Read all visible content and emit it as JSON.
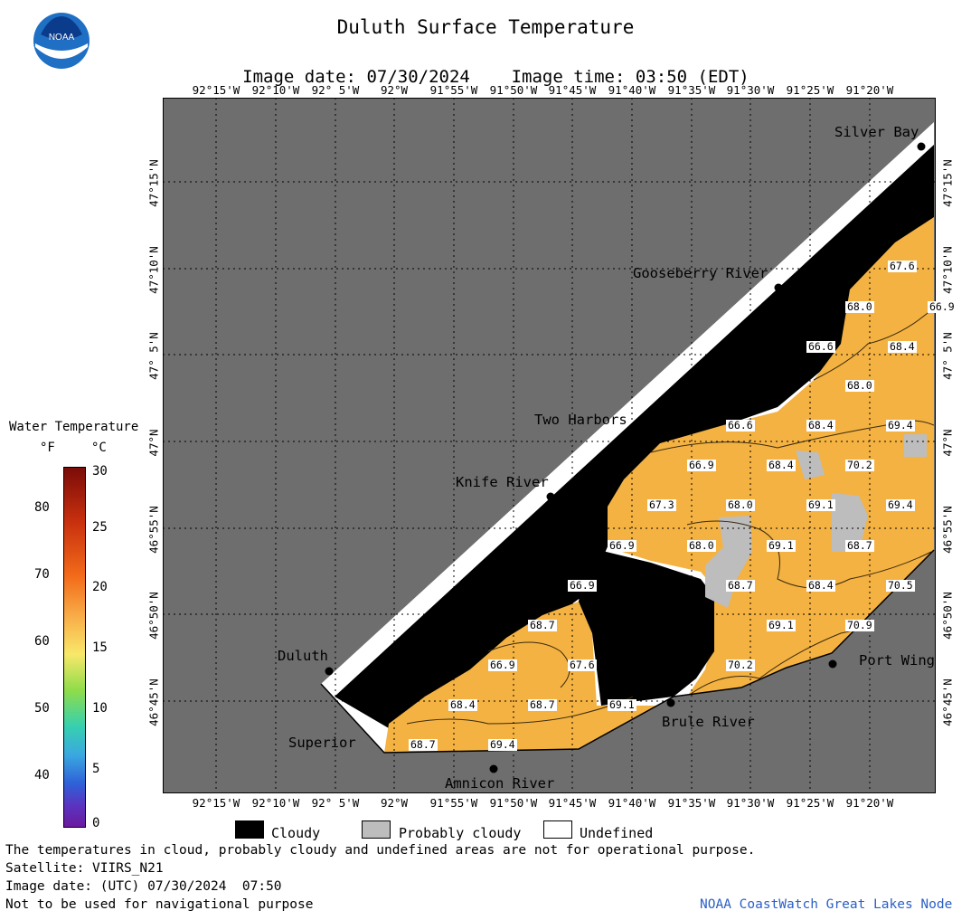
{
  "header": {
    "title": "Duluth Surface Temperature",
    "image_date": "Image date: 07/30/2024",
    "image_time": "Image time: 03:50 (EDT)"
  },
  "map": {
    "longitude_labels": [
      "92°15'W",
      "92°10'W",
      "92° 5'W",
      "92°W",
      "91°55'W",
      "91°50'W",
      "91°45'W",
      "91°40'W",
      "91°35'W",
      "91°30'W",
      "91°25'W",
      "91°20'W"
    ],
    "latitude_labels": [
      "47°15'N",
      "47°10'N",
      "47° 5'N",
      "47°N",
      "46°55'N",
      "46°50'N",
      "46°45'N"
    ],
    "colors": {
      "land": "#6e6e6e",
      "cloudy": "#000000",
      "probably_cloudy": "#bdbdbd",
      "undefined": "#ffffff",
      "water": "#f4b242"
    },
    "places": [
      {
        "name": "Silver Bay"
      },
      {
        "name": "Gooseberry River"
      },
      {
        "name": "Two Harbors"
      },
      {
        "name": "Knife River"
      },
      {
        "name": "Duluth"
      },
      {
        "name": "Superior"
      },
      {
        "name": "Amnicon River"
      },
      {
        "name": "Brule River"
      },
      {
        "name": "Port Wing"
      }
    ],
    "temperature_labels": [
      "67.6",
      "68.0",
      "66.6",
      "68.4",
      "68.0",
      "66.6",
      "68.4",
      "69.4",
      "66.9",
      "68.4",
      "70.2",
      "67.3",
      "68.0",
      "69.1",
      "69.4",
      "66.9",
      "68.0",
      "69.1",
      "68.7",
      "70.5",
      "66.9",
      "68.7",
      "68.4",
      "70.9",
      "68.7",
      "67.6",
      "70.2",
      "68.4",
      "68.7",
      "69.1",
      "68.7",
      "69.4",
      "69.1",
      "66.9",
      "66.9"
    ]
  },
  "colorbar": {
    "title": "Water Temperature",
    "unit_f": "°F",
    "unit_c": "°C",
    "f_ticks": [
      "80",
      "70",
      "60",
      "50",
      "40"
    ],
    "c_ticks": [
      "30",
      "25",
      "20",
      "15",
      "10",
      "5",
      "0"
    ]
  },
  "legend": {
    "cloudy": "Cloudy",
    "probably_cloudy": "Probably cloudy",
    "undefined": "Undefined"
  },
  "footer": {
    "line1": "The temperatures in cloud, probably cloudy and undefined areas are not for operational purpose.",
    "line2": "Satellite: VIIRS_N21",
    "line3": "Image date: (UTC) 07/30/2024  07:50",
    "line4": "Not to be used for navigational purpose",
    "credit": "NOAA CoastWatch Great Lakes Node"
  },
  "logo": {
    "text": "NOAA"
  }
}
